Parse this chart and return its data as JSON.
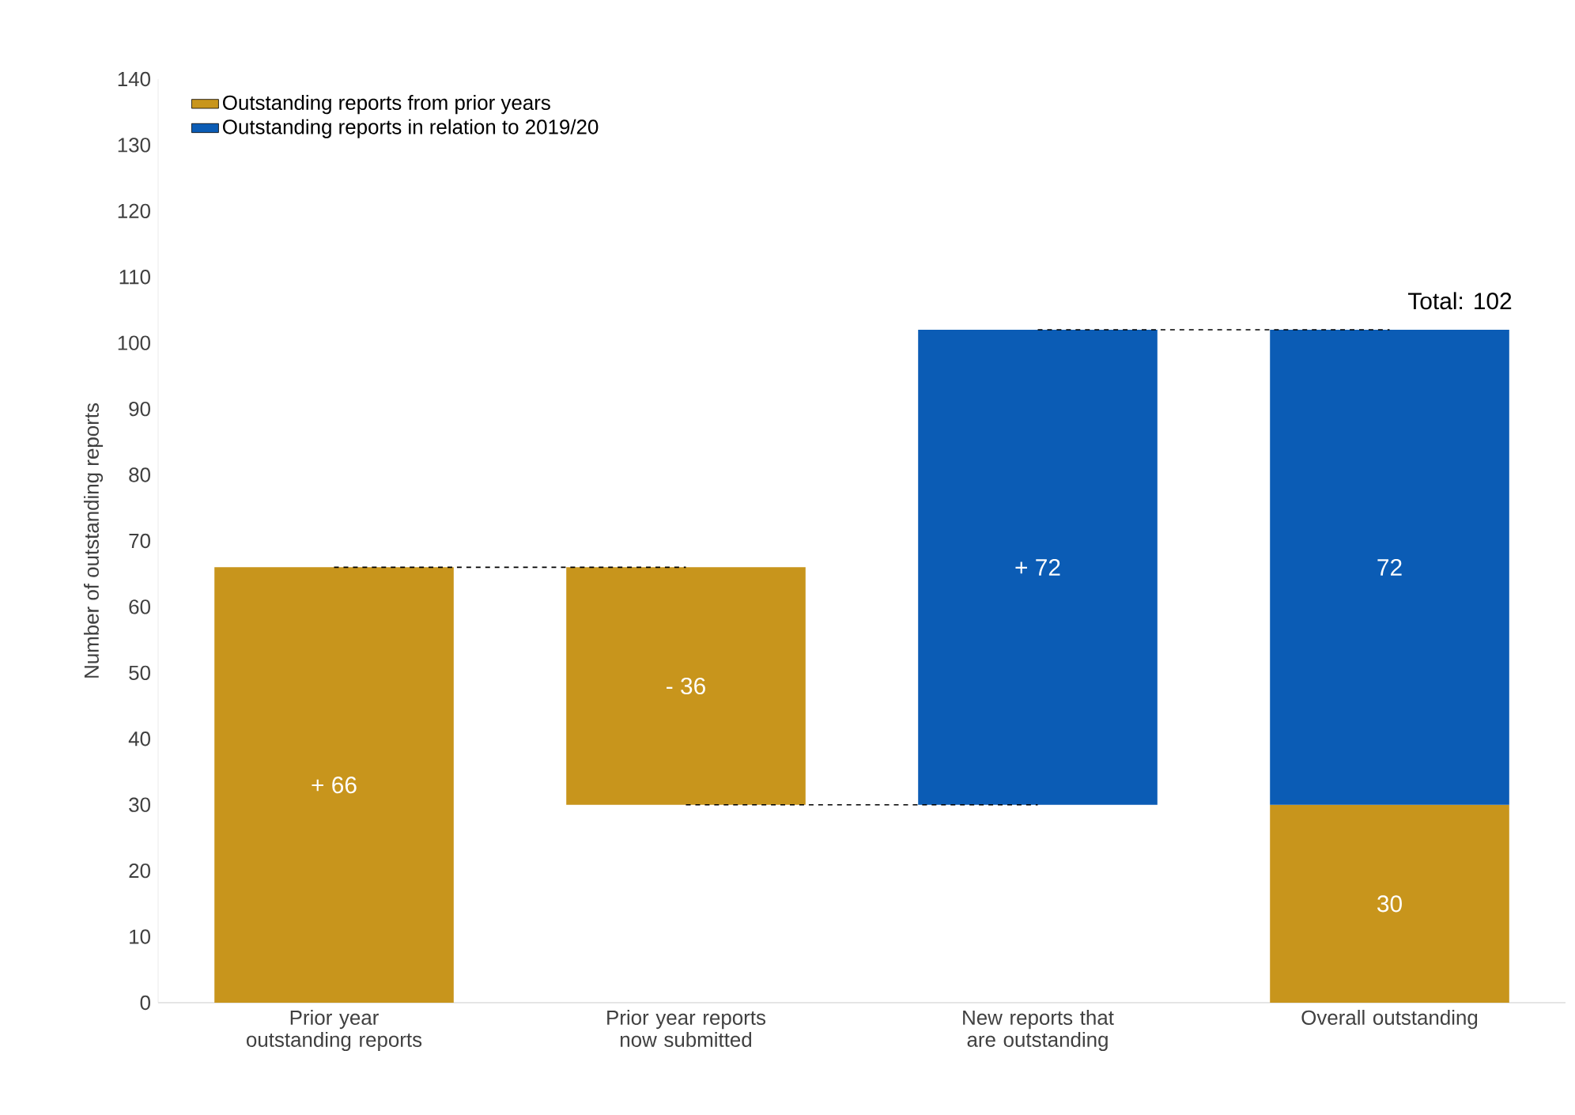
{
  "chart_data": {
    "type": "bar",
    "ylabel": "Number of outstanding reports",
    "categories": [
      "Prior year outstanding reports",
      "Prior year reports now submitted",
      "New reports that are outstanding",
      "Overall outstanding"
    ],
    "series": [
      {
        "name": "Outstanding reports from prior years",
        "color": "#c8951c",
        "values": [
          66,
          -36,
          null,
          30
        ],
        "base": [
          0,
          66,
          null,
          0
        ],
        "value_labels": [
          "+ 66",
          "- 36",
          null,
          "30"
        ]
      },
      {
        "name": "Outstanding reports in relation to 2019/20",
        "color": "#0b5cb5",
        "values": [
          null,
          null,
          72,
          72
        ],
        "base": [
          null,
          null,
          30,
          30
        ],
        "value_labels": [
          null,
          null,
          "+ 72",
          "72"
        ]
      }
    ],
    "ylim": [
      0,
      140
    ],
    "yticks": [
      0,
      10,
      20,
      30,
      40,
      50,
      60,
      70,
      80,
      90,
      100,
      110,
      120,
      130,
      140
    ],
    "annotations": [
      {
        "text": "Total: 102",
        "x": "Overall outstanding",
        "y": 102
      }
    ],
    "legend": "top left",
    "grid": false
  }
}
